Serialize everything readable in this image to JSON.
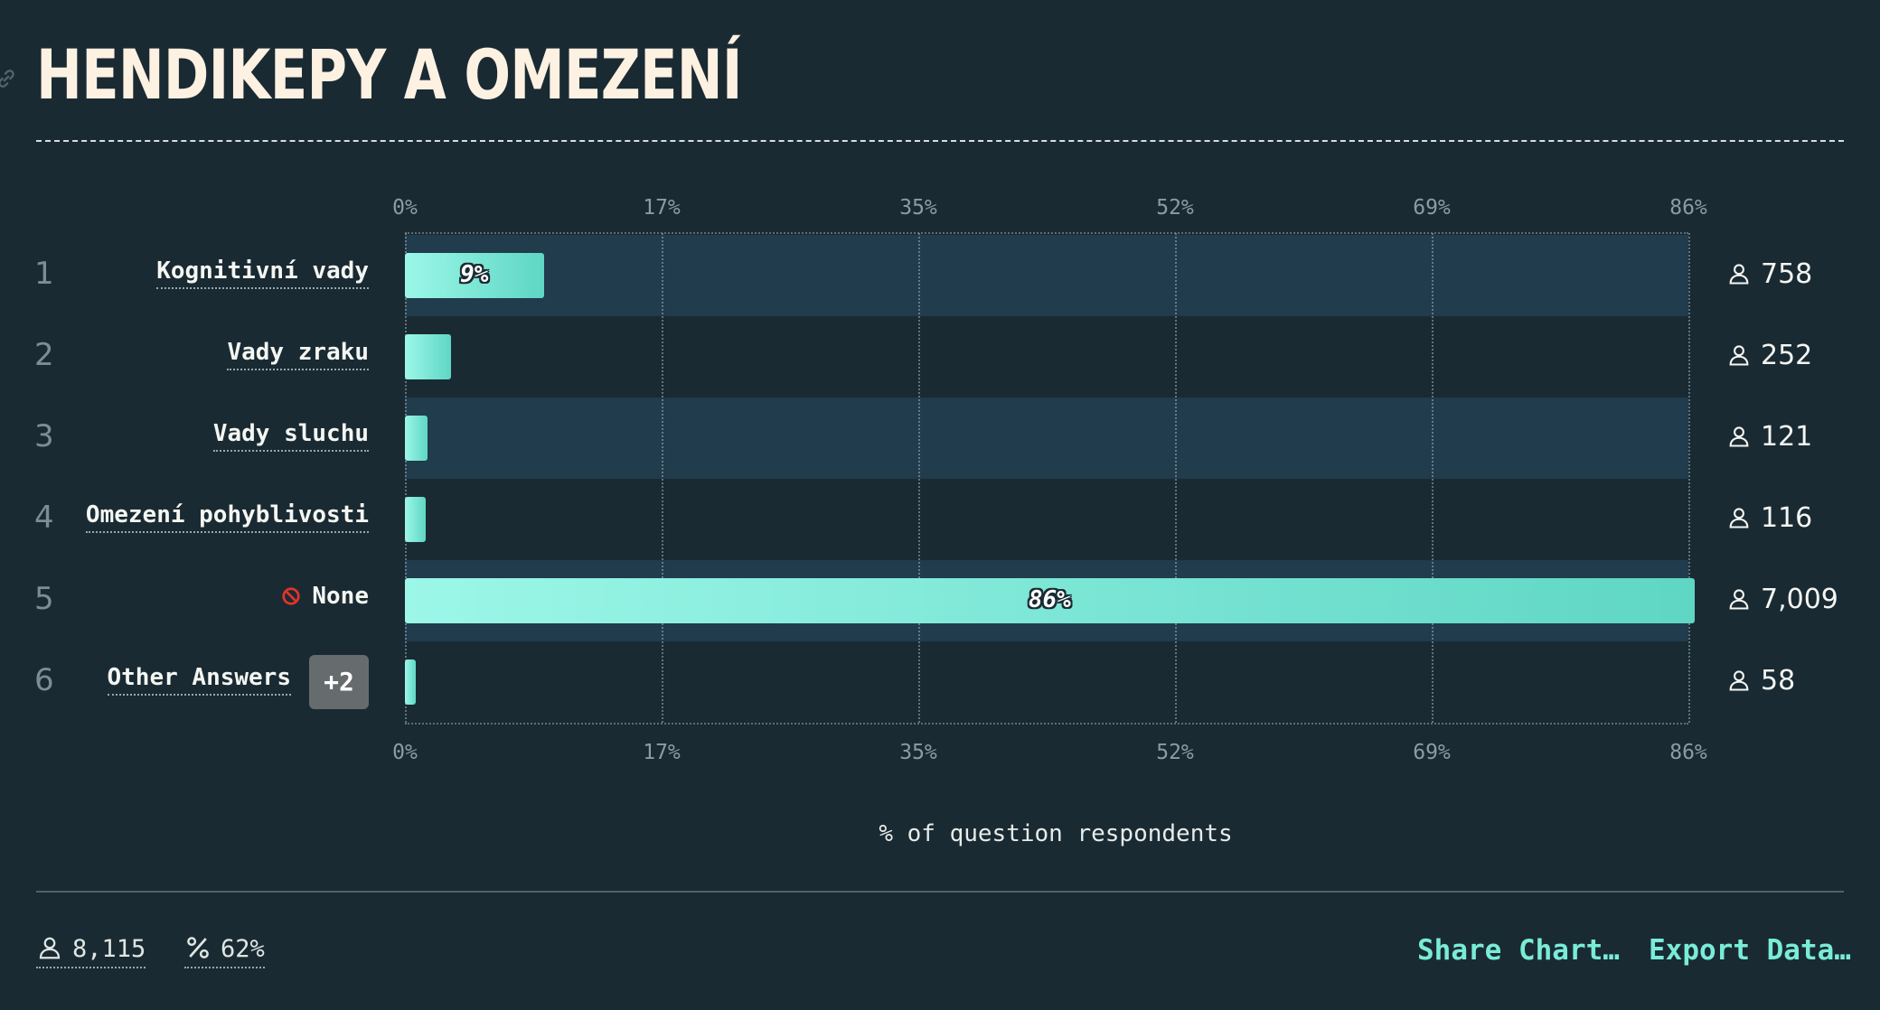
{
  "title": "HENDIKEPY A OMEZENÍ",
  "chart_data": {
    "type": "bar",
    "orientation": "horizontal",
    "title": "HENDIKEPY A OMEZENÍ",
    "xlabel": "% of question respondents",
    "xlim": [
      0,
      86
    ],
    "ticks": [
      "0%",
      "17%",
      "35%",
      "52%",
      "69%",
      "86%"
    ],
    "grid": true,
    "categories": [
      "Kognitivní vady",
      "Vady zraku",
      "Vady sluchu",
      "Omezení pohyblivosti",
      "None",
      "Other Answers"
    ],
    "ranks": [
      "1",
      "2",
      "3",
      "4",
      "5",
      "6"
    ],
    "values": [
      9.3,
      3.1,
      1.5,
      1.4,
      86.4,
      0.7
    ],
    "value_labels": [
      "9%",
      "",
      "",
      "",
      "86%",
      ""
    ],
    "counts": [
      "758",
      "252",
      "121",
      "116",
      "7,009",
      "58"
    ],
    "other_badge": "+2"
  },
  "footer": {
    "respondents": "8,115",
    "percentage": "62%",
    "share_label": "Share Chart…",
    "export_label": "Export Data…"
  },
  "colors": {
    "background": "#1a2a33",
    "bar_start": "#9cf7e8",
    "bar_end": "#5fd6c4",
    "accent": "#79ecd8"
  },
  "icons": {
    "count": "user-icon",
    "none": "prohibited-icon",
    "title": "link-icon"
  }
}
